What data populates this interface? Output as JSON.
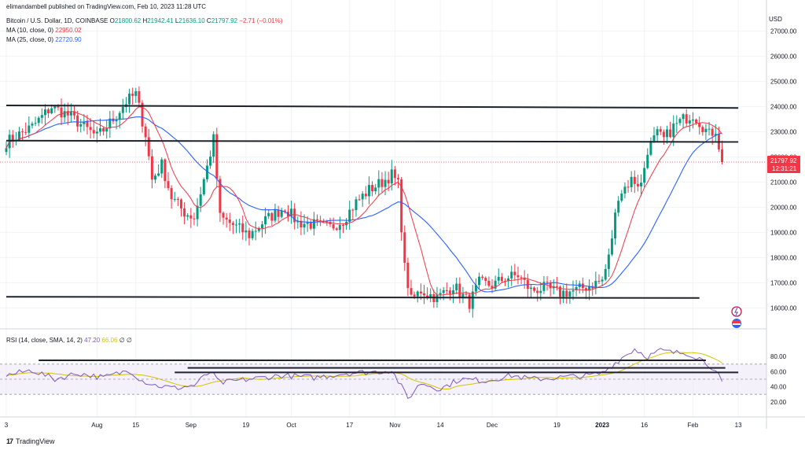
{
  "header": {
    "published": "elimandambell published on TradingView.com, Feb 10, 2023 11:28 UTC",
    "symbol": "Bitcoin / U.S. Dollar, 1D, COINBASE",
    "ohlc": {
      "o_label": "O",
      "o": "21800.62",
      "h_label": "H",
      "h": "21942.41",
      "l_label": "L",
      "l": "21636.10",
      "c_label": "C",
      "c": "21797.92",
      "change": "−2.71 (−0.01%)"
    },
    "ma10": {
      "label": "MA (10, close, 0)",
      "value": "22950.02",
      "color": "#f23645"
    },
    "ma25": {
      "label": "MA (25, close, 0)",
      "value": "22720.90",
      "color": "#2962ff"
    },
    "rsi": {
      "label": "RSI (14, close, SMA, 14, 2)",
      "value": "47.20",
      "sma": "66.06",
      "extra": "∅ ∅"
    }
  },
  "currency": "USD",
  "price_label": {
    "price": "21797.92",
    "countdown": "12:31:21"
  },
  "brand": "TradingView",
  "colors": {
    "up": "#089981",
    "down": "#f23645",
    "ma10": "#f23645",
    "ma25": "#2962ff",
    "rsi": "#7e57c2",
    "rsi_sma": "#d4c300",
    "rsi_band": "#ede7f6"
  },
  "chart_data": {
    "type": "candlestick",
    "y_ticks": [
      16000,
      17000,
      18000,
      19000,
      20000,
      21000,
      22000,
      23000,
      24000,
      25000,
      26000,
      27000
    ],
    "ylim": [
      15300,
      27800
    ],
    "rsi_ticks": [
      20,
      40,
      60,
      80
    ],
    "rsi_levels": [
      30,
      50,
      70
    ],
    "x_ticks": [
      "3",
      "Aug",
      "15",
      "Sep",
      "19",
      "Oct",
      "17",
      "Nov",
      "14",
      "Dec",
      "19",
      "2023",
      "16",
      "Feb",
      "13"
    ],
    "x_tick_days": [
      0,
      28,
      40,
      57,
      74,
      88,
      106,
      120,
      134,
      150,
      170,
      184,
      197,
      212,
      226
    ],
    "last_day": 221,
    "anchors": [
      [
        0,
        22600
      ],
      [
        8,
        23200
      ],
      [
        14,
        24000
      ],
      [
        20,
        23600
      ],
      [
        28,
        22800
      ],
      [
        33,
        23500
      ],
      [
        37,
        24200
      ],
      [
        40,
        24500
      ],
      [
        43,
        22900
      ],
      [
        45,
        21100
      ],
      [
        48,
        21700
      ],
      [
        51,
        20400
      ],
      [
        55,
        19800
      ],
      [
        58,
        19600
      ],
      [
        62,
        21600
      ],
      [
        64,
        22700
      ],
      [
        66,
        19600
      ],
      [
        70,
        19300
      ],
      [
        75,
        18900
      ],
      [
        80,
        19500
      ],
      [
        86,
        20000
      ],
      [
        90,
        19400
      ],
      [
        96,
        19300
      ],
      [
        100,
        19200
      ],
      [
        104,
        19500
      ],
      [
        108,
        20200
      ],
      [
        112,
        20700
      ],
      [
        116,
        21000
      ],
      [
        119,
        21300
      ],
      [
        121,
        20900
      ],
      [
        123,
        17600
      ],
      [
        125,
        16300
      ],
      [
        128,
        16700
      ],
      [
        133,
        16400
      ],
      [
        138,
        16900
      ],
      [
        143,
        16200
      ],
      [
        146,
        17000
      ],
      [
        150,
        16900
      ],
      [
        154,
        17200
      ],
      [
        158,
        17300
      ],
      [
        162,
        16700
      ],
      [
        166,
        16800
      ],
      [
        171,
        16600
      ],
      [
        176,
        16700
      ],
      [
        180,
        16900
      ],
      [
        184,
        17100
      ],
      [
        186,
        18000
      ],
      [
        189,
        20500
      ],
      [
        193,
        21100
      ],
      [
        196,
        20900
      ],
      [
        198,
        22300
      ],
      [
        201,
        22900
      ],
      [
        203,
        22700
      ],
      [
        206,
        23200
      ],
      [
        209,
        23500
      ],
      [
        212,
        23700
      ],
      [
        214,
        23400
      ],
      [
        217,
        22900
      ],
      [
        219,
        23100
      ],
      [
        221,
        21800
      ]
    ],
    "rsi_anchors": [
      [
        0,
        55
      ],
      [
        8,
        62
      ],
      [
        15,
        50
      ],
      [
        22,
        58
      ],
      [
        30,
        52
      ],
      [
        38,
        62
      ],
      [
        42,
        48
      ],
      [
        46,
        42
      ],
      [
        52,
        38
      ],
      [
        58,
        42
      ],
      [
        63,
        60
      ],
      [
        66,
        45
      ],
      [
        75,
        50
      ],
      [
        85,
        55
      ],
      [
        95,
        52
      ],
      [
        105,
        58
      ],
      [
        115,
        60
      ],
      [
        119,
        62
      ],
      [
        122,
        40
      ],
      [
        124,
        24
      ],
      [
        128,
        45
      ],
      [
        134,
        37
      ],
      [
        140,
        50
      ],
      [
        148,
        48
      ],
      [
        156,
        55
      ],
      [
        162,
        50
      ],
      [
        170,
        52
      ],
      [
        180,
        55
      ],
      [
        184,
        58
      ],
      [
        189,
        75
      ],
      [
        194,
        90
      ],
      [
        198,
        80
      ],
      [
        202,
        88
      ],
      [
        206,
        85
      ],
      [
        210,
        85
      ],
      [
        214,
        78
      ],
      [
        218,
        66
      ],
      [
        221,
        47
      ]
    ],
    "resistance_lines": [
      {
        "from": [
          0,
          24050
        ],
        "to": [
          226,
          23950
        ]
      },
      {
        "from": [
          0,
          22650
        ],
        "to": [
          226,
          22600
        ]
      },
      {
        "from": [
          0,
          16450
        ],
        "to": [
          214,
          16400
        ]
      }
    ],
    "rsi_lines": [
      {
        "from": [
          10,
          75
        ],
        "to": [
          216,
          75
        ]
      },
      {
        "from": [
          56,
          65
        ],
        "to": [
          222,
          65
        ]
      },
      {
        "from": [
          52,
          59
        ],
        "to": [
          226,
          59
        ]
      }
    ]
  }
}
